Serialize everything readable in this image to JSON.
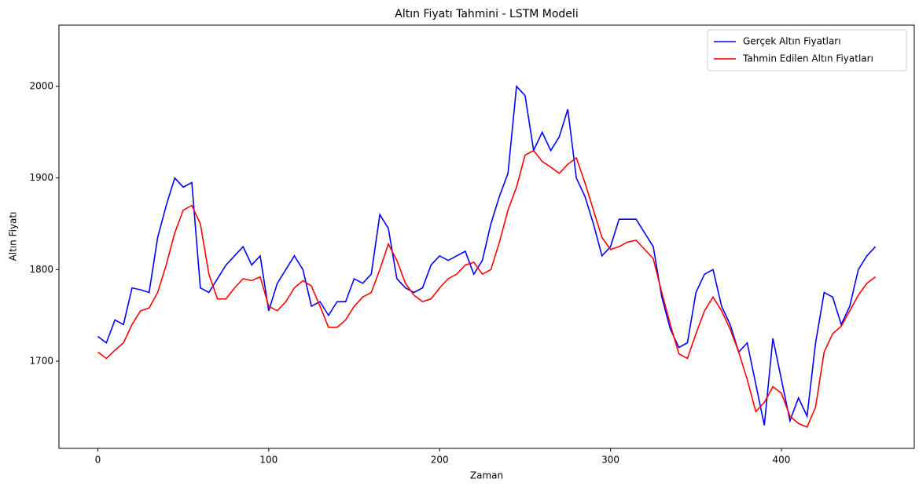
{
  "chart_data": {
    "type": "line",
    "title": "Altın Fiyatı Tahmini - LSTM Modeli",
    "x_label": "Zaman",
    "y_label": "Altın Fiyatı",
    "x": [
      0,
      5,
      10,
      15,
      20,
      25,
      30,
      35,
      40,
      45,
      50,
      55,
      60,
      65,
      70,
      75,
      80,
      85,
      90,
      95,
      100,
      105,
      110,
      115,
      120,
      125,
      130,
      135,
      140,
      145,
      150,
      155,
      160,
      165,
      170,
      175,
      180,
      185,
      190,
      195,
      200,
      205,
      210,
      215,
      220,
      225,
      230,
      235,
      240,
      245,
      250,
      255,
      260,
      265,
      270,
      275,
      280,
      285,
      290,
      295,
      300,
      305,
      310,
      315,
      320,
      325,
      330,
      335,
      340,
      345,
      350,
      355,
      360,
      365,
      370,
      375,
      380,
      385,
      390,
      395,
      400,
      405,
      410,
      415,
      420,
      425,
      430,
      435,
      440,
      445,
      450,
      455
    ],
    "series": [
      {
        "name": "Gerçek Altın Fiyatları",
        "color": "#0000ff",
        "values": [
          1727,
          1720,
          1745,
          1740,
          1780,
          1778,
          1775,
          1835,
          1870,
          1900,
          1890,
          1895,
          1780,
          1775,
          1790,
          1805,
          1815,
          1825,
          1805,
          1815,
          1755,
          1785,
          1800,
          1815,
          1800,
          1760,
          1765,
          1750,
          1765,
          1765,
          1790,
          1785,
          1795,
          1860,
          1845,
          1790,
          1780,
          1775,
          1780,
          1805,
          1815,
          1810,
          1815,
          1820,
          1795,
          1810,
          1850,
          1880,
          1905,
          2000,
          1990,
          1930,
          1950,
          1930,
          1945,
          1975,
          1900,
          1880,
          1850,
          1815,
          1825,
          1855,
          1855,
          1855,
          1840,
          1825,
          1770,
          1735,
          1715,
          1720,
          1775,
          1795,
          1800,
          1760,
          1740,
          1710,
          1720,
          1675,
          1630,
          1725,
          1680,
          1635,
          1660,
          1640,
          1720,
          1775,
          1770,
          1740,
          1760,
          1800,
          1815,
          1825
        ]
      },
      {
        "name": "Tahmin Edilen Altın Fiyatları",
        "color": "#ff0000",
        "values": [
          1710,
          1703,
          1712,
          1720,
          1740,
          1755,
          1758,
          1775,
          1805,
          1840,
          1865,
          1870,
          1850,
          1795,
          1768,
          1768,
          1780,
          1790,
          1788,
          1792,
          1760,
          1755,
          1765,
          1780,
          1788,
          1782,
          1760,
          1737,
          1737,
          1745,
          1760,
          1770,
          1775,
          1800,
          1828,
          1810,
          1785,
          1772,
          1765,
          1768,
          1780,
          1790,
          1795,
          1805,
          1808,
          1795,
          1800,
          1830,
          1865,
          1890,
          1925,
          1930,
          1918,
          1912,
          1905,
          1915,
          1922,
          1895,
          1865,
          1835,
          1822,
          1825,
          1830,
          1832,
          1822,
          1812,
          1775,
          1740,
          1708,
          1703,
          1730,
          1755,
          1770,
          1755,
          1735,
          1710,
          1680,
          1645,
          1655,
          1672,
          1665,
          1640,
          1632,
          1628,
          1650,
          1710,
          1730,
          1738,
          1755,
          1772,
          1785,
          1792
        ]
      }
    ],
    "xlim": [
      -22.75,
      477.75
    ],
    "ylim": [
      1604.8,
      2066.9
    ],
    "xticks": [
      0,
      100,
      200,
      300,
      400
    ],
    "yticks": [
      1700,
      1800,
      1900,
      2000
    ],
    "legend": "upper right"
  }
}
